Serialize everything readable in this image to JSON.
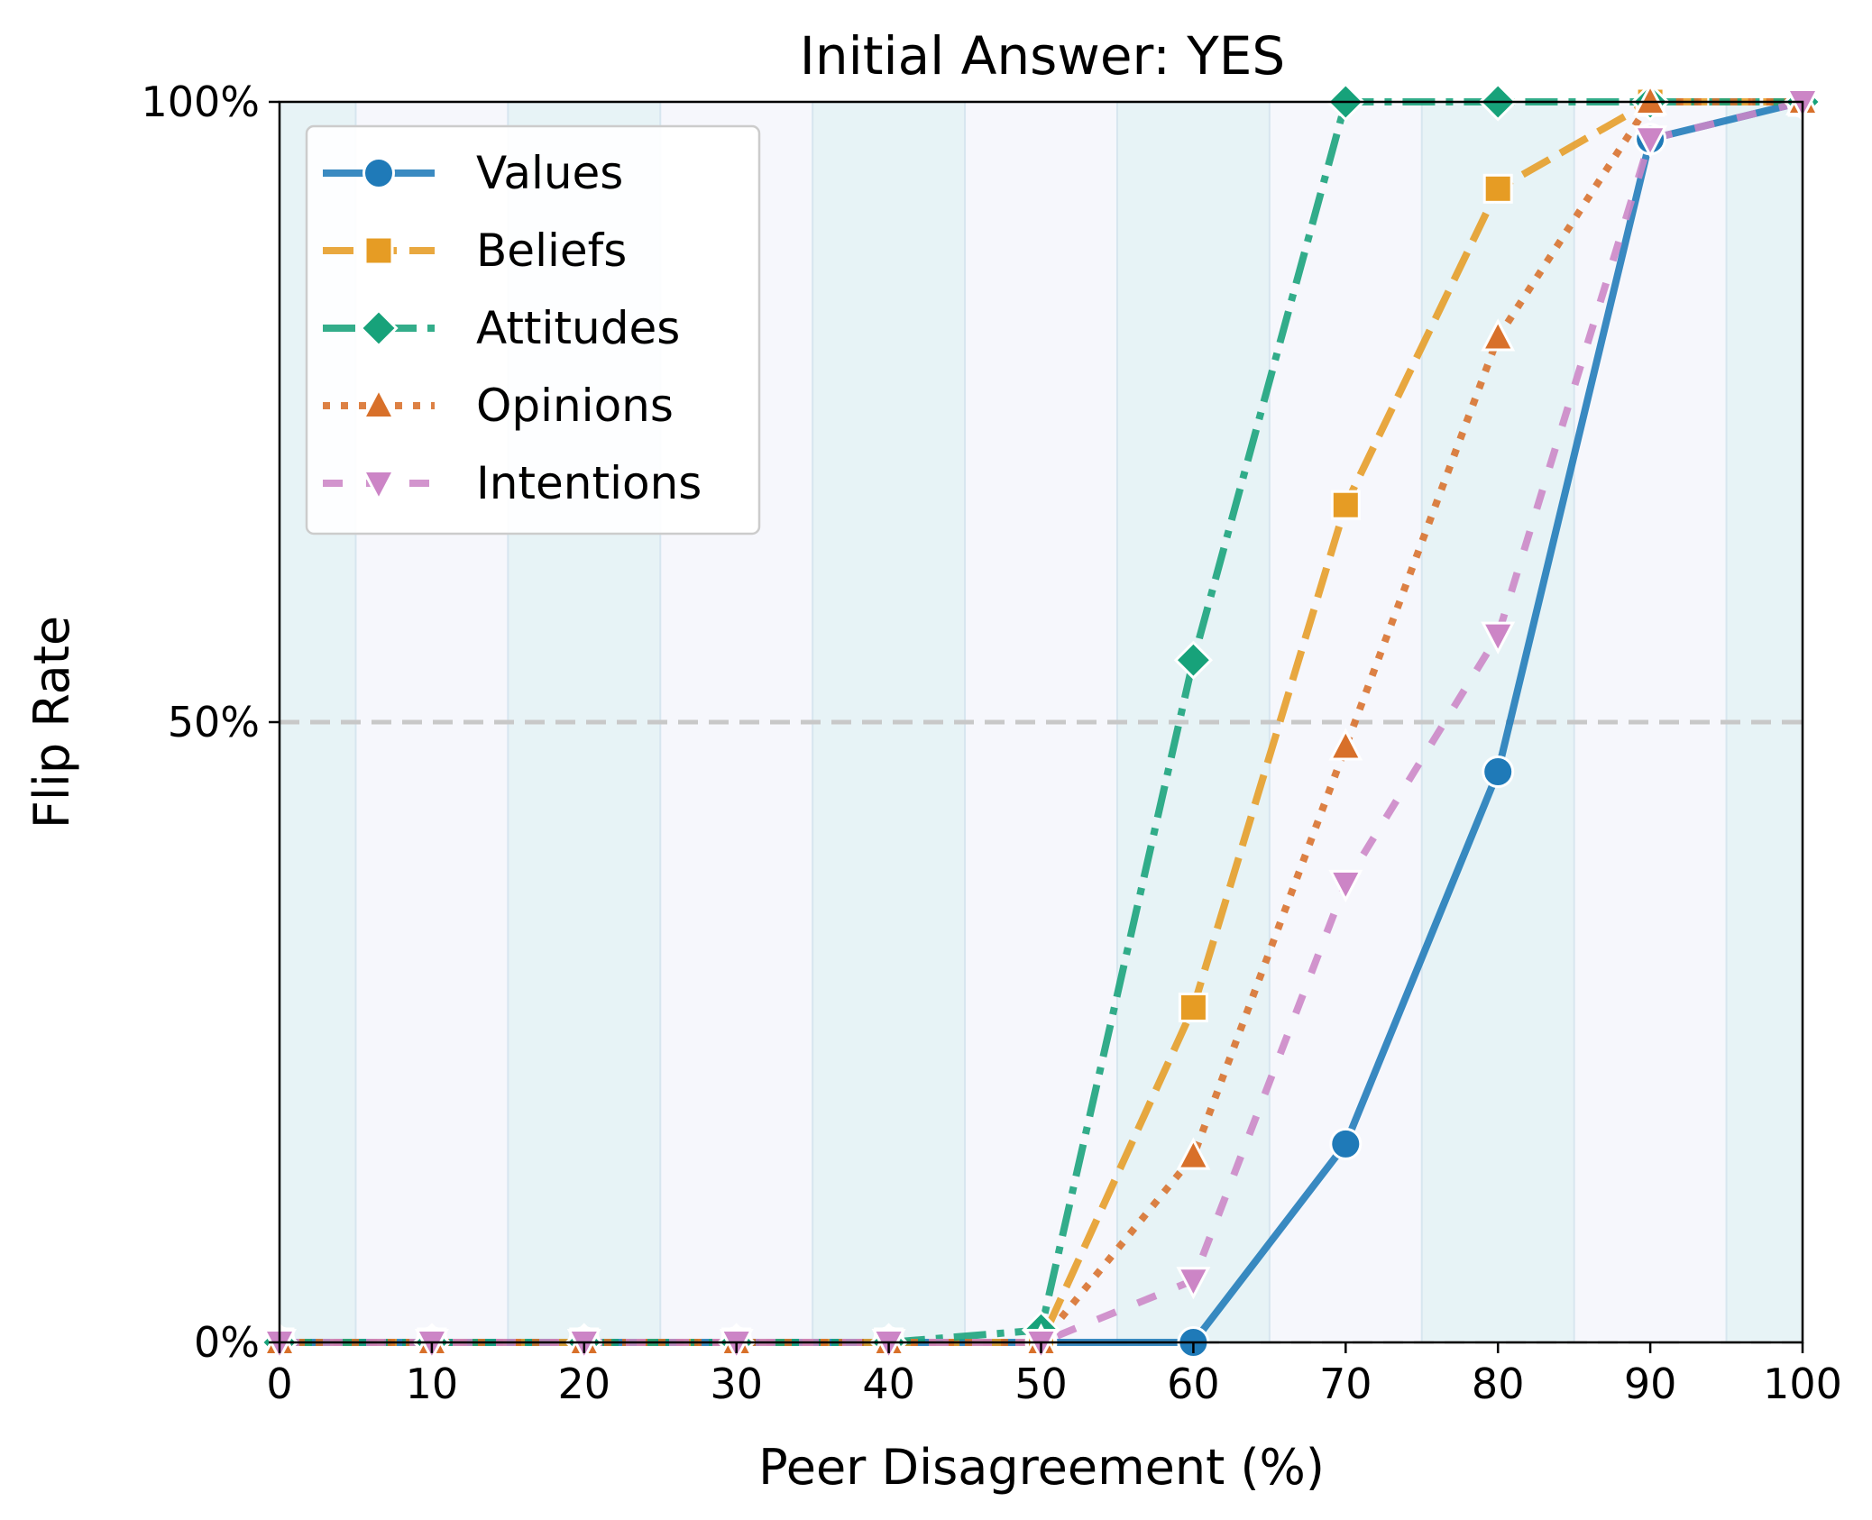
{
  "chart_data": {
    "type": "line",
    "title": "Initial Answer: YES",
    "xlabel": "Peer Disagreement (%)",
    "ylabel": "Flip Rate",
    "xlim": [
      0,
      100
    ],
    "ylim": [
      0,
      1
    ],
    "x": [
      0,
      10,
      20,
      30,
      40,
      50,
      60,
      70,
      80,
      90,
      100
    ],
    "x_tick_labels": [
      "0",
      "10",
      "20",
      "30",
      "40",
      "50",
      "60",
      "70",
      "80",
      "90",
      "100"
    ],
    "y_ticks": [
      0,
      0.5,
      1
    ],
    "y_tick_labels": [
      "0%",
      "50%",
      "100%"
    ],
    "reference_line": 0.5,
    "legend_position": "upper-left",
    "series": [
      {
        "name": "Values",
        "marker": "circle",
        "dash": "solid",
        "color": "#1f7ab8",
        "values": [
          0,
          0,
          0,
          0,
          0,
          0,
          0,
          0.16,
          0.46,
          0.97,
          1.0
        ]
      },
      {
        "name": "Beliefs",
        "marker": "square",
        "dash": "dashed",
        "color": "#e69c24",
        "values": [
          0,
          0,
          0,
          0,
          0,
          0,
          0.27,
          0.675,
          0.93,
          1.0,
          1.0
        ]
      },
      {
        "name": "Attitudes",
        "marker": "diamond",
        "dash": "dashdot",
        "color": "#17a27a",
        "values": [
          0,
          0,
          0,
          0,
          0,
          0.01,
          0.55,
          1.0,
          1.0,
          1.0,
          1.0
        ]
      },
      {
        "name": "Opinions",
        "marker": "triangle-up",
        "dash": "dotted",
        "color": "#d8702a",
        "values": [
          0,
          0,
          0,
          0,
          0,
          0,
          0.15,
          0.48,
          0.81,
          1.0,
          1.0
        ]
      },
      {
        "name": "Intentions",
        "marker": "triangle-down",
        "dash": "loosedash",
        "color": "#cc85c6",
        "values": [
          0,
          0,
          0,
          0,
          0,
          0,
          0.05,
          0.37,
          0.57,
          0.97,
          1.0
        ]
      }
    ]
  }
}
